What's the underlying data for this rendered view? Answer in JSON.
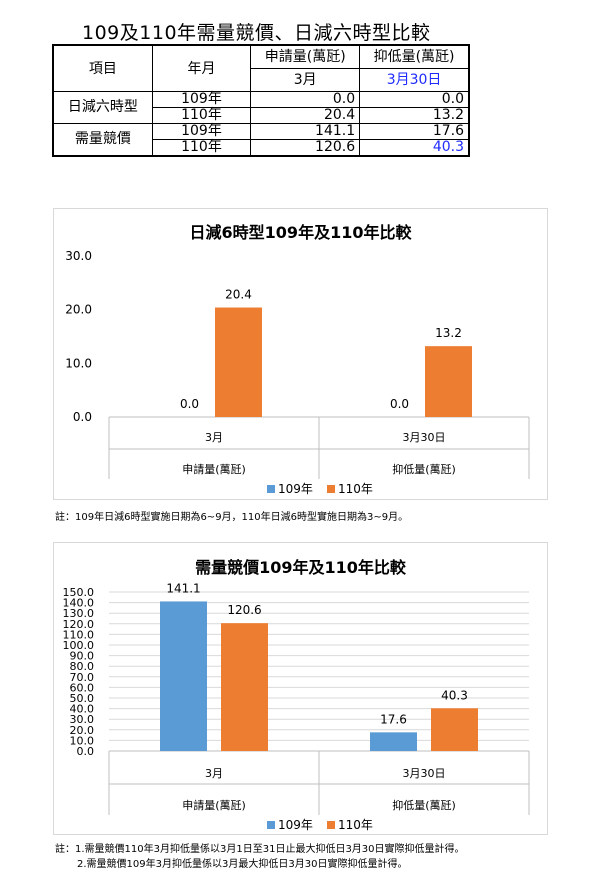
{
  "page_title": "109及110年需量競價、日減六時型比較",
  "table": {
    "col_item": "項目",
    "col_year": "年月",
    "col_apply": "申請量(萬瓩)",
    "col_reduce": "抑低量(萬瓩)",
    "sub_apply": "3月",
    "sub_reduce": "3月30日",
    "rows": [
      {
        "group": "日減六時型",
        "year": "109年",
        "apply": "0.0",
        "reduce": "0.0"
      },
      {
        "group": "日減六時型",
        "year": "110年",
        "apply": "20.4",
        "reduce": "13.2"
      },
      {
        "group": "需量競價",
        "year": "109年",
        "apply": "141.1",
        "reduce": "17.6"
      },
      {
        "group": "需量競價",
        "year": "110年",
        "apply": "120.6",
        "reduce": "40.3"
      }
    ]
  },
  "colors": {
    "series_109": "#5b9bd5",
    "series_110": "#ed7d31",
    "grid": "#d9d9d9",
    "highlight": "#1f2bff"
  },
  "chart_data": [
    {
      "type": "bar",
      "title": "日減6時型109年及110年比較",
      "categories": [
        "3月",
        "3月30日"
      ],
      "groups": [
        "申請量(萬瓩)",
        "抑低量(萬瓩)"
      ],
      "series": [
        {
          "name": "109年",
          "values": [
            0.0,
            0.0
          ]
        },
        {
          "name": "110年",
          "values": [
            20.4,
            13.2
          ]
        }
      ],
      "y_ticks": [
        "0.0",
        "10.0",
        "20.0",
        "30.0"
      ],
      "ylim": [
        0,
        30
      ],
      "legend": "bottom",
      "grid": false
    },
    {
      "type": "bar",
      "title": "需量競價109年及110年比較",
      "categories": [
        "3月",
        "3月30日"
      ],
      "groups": [
        "申請量(萬瓩)",
        "抑低量(萬瓩)"
      ],
      "series": [
        {
          "name": "109年",
          "values": [
            141.1,
            17.6
          ]
        },
        {
          "name": "110年",
          "values": [
            120.6,
            40.3
          ]
        }
      ],
      "y_ticks": [
        "0.0",
        "10.0",
        "20.0",
        "30.0",
        "40.0",
        "50.0",
        "60.0",
        "70.0",
        "80.0",
        "90.0",
        "100.0",
        "110.0",
        "120.0",
        "130.0",
        "140.0",
        "150.0"
      ],
      "ylim": [
        0,
        150
      ],
      "legend": "bottom",
      "grid": true
    }
  ],
  "notes": {
    "chart1": "註：109年日減6時型實施日期為6~9月，110年日減6時型實施日期為3~9月。",
    "chart2_line1": "註：1.需量競價110年3月抑低量係以3月1日至31日止最大抑低日3月30日實際抑低量計得。",
    "chart2_line2": "2.需量競價109年3月抑低量係以3月最大抑低日3月30日實際抑低量計得。"
  }
}
